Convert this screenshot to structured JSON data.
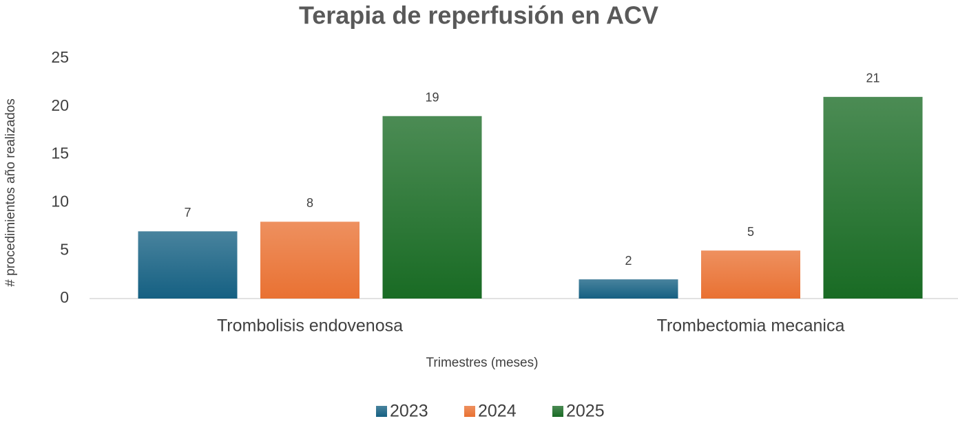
{
  "chart_data": {
    "type": "bar",
    "title": "Terapia de reperfusión en ACV",
    "x_label": "Trimestres (meses)",
    "y_label": "# procedimientos año realizados",
    "categories": [
      "Trombolisis endovenosa",
      "Trombectomia mecanica"
    ],
    "series": [
      {
        "name": "2023",
        "color": "#156082",
        "values": [
          7,
          2
        ]
      },
      {
        "name": "2024",
        "color": "#e97132",
        "values": [
          8,
          5
        ]
      },
      {
        "name": "2025",
        "color": "#196b24",
        "values": [
          19,
          21
        ]
      }
    ],
    "ylim": [
      0,
      25
    ],
    "yticks": [
      0,
      5,
      10,
      15,
      20,
      25
    ],
    "grid": false,
    "legend": "bottom"
  }
}
